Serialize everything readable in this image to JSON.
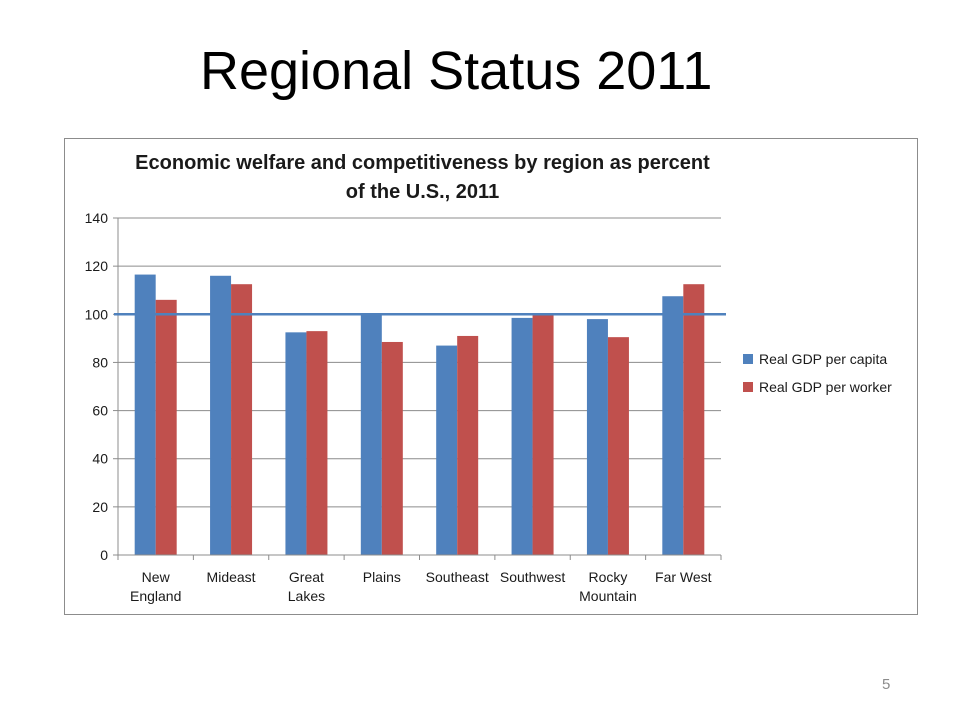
{
  "slide": {
    "title": "Regional Status 2011",
    "page_number": "5"
  },
  "colors": {
    "series_capita": "#4f81bd",
    "series_worker": "#c0504d",
    "reference_line": "#4f81bd",
    "grid": "#8c8c8c",
    "frame": "#8c8c8c"
  },
  "chart_data": {
    "type": "bar",
    "title": "Economic welfare and competitiveness by region as percent of the U.S., 2011",
    "title_lines": [
      "Economic welfare and competitiveness by region as percent",
      "of the U.S., 2011"
    ],
    "categories": [
      [
        "New",
        "England"
      ],
      [
        "Mideast"
      ],
      [
        "Great",
        "Lakes"
      ],
      [
        "Plains"
      ],
      [
        "Southeast"
      ],
      [
        "Southwest"
      ],
      [
        "Rocky",
        "Mountain"
      ],
      [
        "Far West"
      ]
    ],
    "series": [
      {
        "name": "Real GDP per capita",
        "values": [
          116.5,
          116,
          92.5,
          99.5,
          87,
          98.5,
          98,
          107.5
        ]
      },
      {
        "name": "Real GDP per worker",
        "values": [
          106,
          112.5,
          93,
          88.5,
          91,
          100,
          90.5,
          112.5
        ]
      }
    ],
    "ylim": [
      0,
      140
    ],
    "yticks": [
      0,
      20,
      40,
      60,
      80,
      100,
      120,
      140
    ],
    "reference_line": 100,
    "grid": true,
    "legend_position": "right"
  }
}
